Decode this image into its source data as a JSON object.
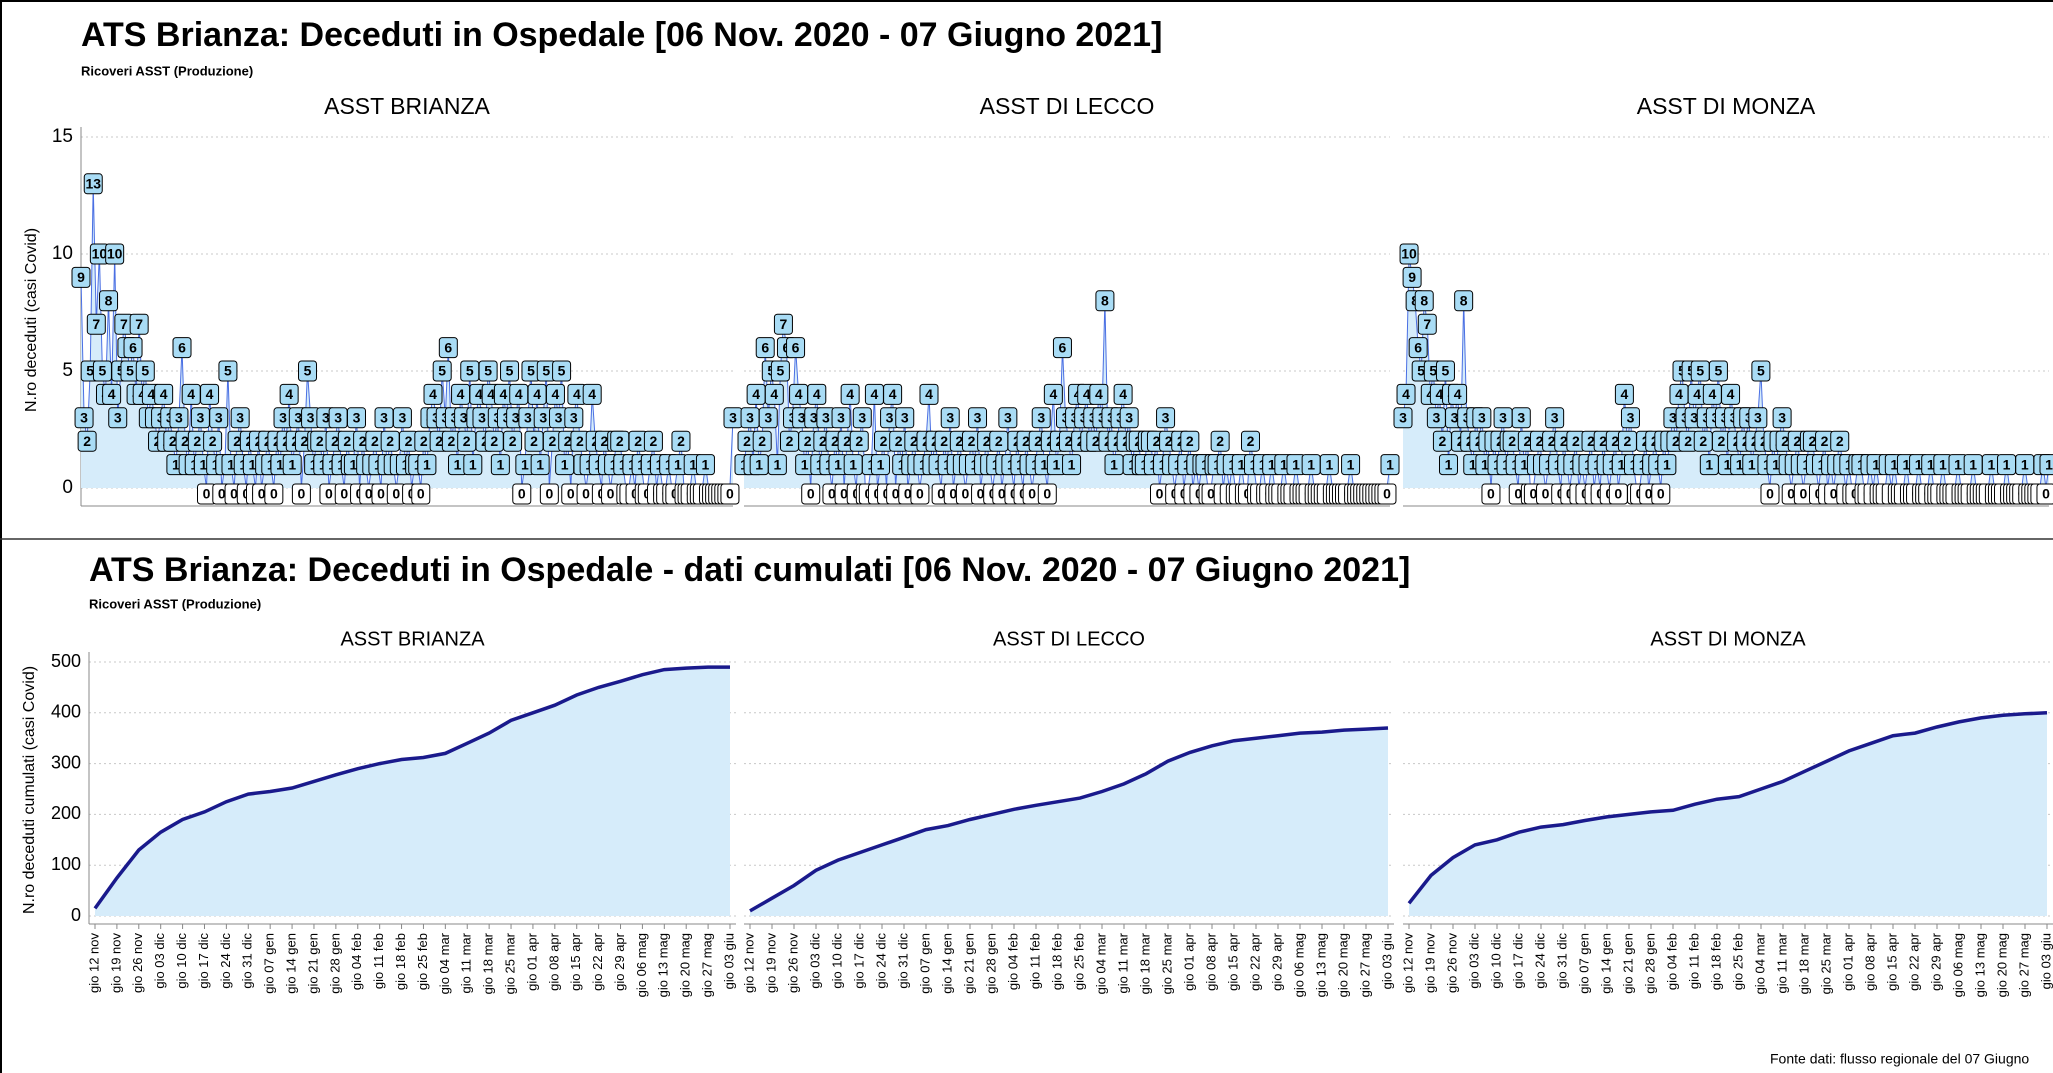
{
  "chart_data": [
    {
      "type": "line",
      "title": "ATS Brianza: Deceduti in Ospedale [06 Nov. 2020 - 07 Giugno 2021]",
      "subtitle": "Ricoveri ASST (Produzione)",
      "ylabel": "N.ro deceduti (casi Covid)",
      "ylim": [
        0,
        15
      ],
      "yticks": [
        0,
        5,
        10,
        15
      ],
      "grid": true,
      "series": [
        {
          "name": "ASST BRIANZA",
          "color": "#4a6fe3",
          "values": [
            9,
            3,
            2,
            5,
            13,
            7,
            10,
            5,
            4,
            8,
            4,
            10,
            3,
            5,
            7,
            6,
            5,
            6,
            4,
            7,
            4,
            5,
            3,
            4,
            3,
            2,
            3,
            4,
            2,
            3,
            2,
            1,
            3,
            6,
            2,
            1,
            4,
            1,
            2,
            3,
            1,
            0,
            4,
            2,
            1,
            3,
            0,
            1,
            5,
            1,
            0,
            2,
            3,
            1,
            0,
            2,
            1,
            0,
            2,
            0,
            1,
            2,
            1,
            0,
            2,
            1,
            3,
            2,
            4,
            1,
            2,
            3,
            0,
            2,
            5,
            3,
            1,
            2,
            2,
            1,
            3,
            0,
            1,
            2,
            3,
            1,
            0,
            2,
            1,
            1,
            3,
            0,
            2,
            1,
            0,
            1,
            2,
            1,
            0,
            3,
            1,
            2,
            1,
            0,
            1,
            3,
            1,
            2,
            0,
            1,
            1,
            0,
            2,
            1,
            3,
            4,
            3,
            2,
            5,
            3,
            6,
            2,
            3,
            1,
            4,
            3,
            2,
            5,
            1,
            3,
            4,
            3,
            2,
            5,
            4,
            2,
            3,
            1,
            4,
            3,
            5,
            2,
            3,
            4,
            0,
            1,
            3,
            5,
            2,
            4,
            1,
            3,
            5,
            0,
            2,
            4,
            3,
            5,
            1,
            2,
            0,
            3,
            4,
            2,
            1,
            0,
            1,
            4,
            2,
            1,
            0,
            2,
            1,
            0,
            1,
            2,
            2,
            1,
            0,
            0,
            1,
            0,
            2,
            1,
            0,
            0,
            1,
            2,
            0,
            1,
            0,
            0,
            1,
            0,
            0,
            1,
            2,
            0,
            0,
            0,
            1,
            0,
            0,
            0,
            1,
            0,
            0,
            0,
            0,
            0,
            0,
            0,
            0,
            3
          ]
        },
        {
          "name": "ASST DI LECCO",
          "color": "#4a6fe3",
          "values": [
            1,
            2,
            3,
            1,
            4,
            1,
            2,
            6,
            3,
            5,
            4,
            1,
            5,
            7,
            6,
            2,
            3,
            6,
            4,
            3,
            1,
            2,
            0,
            3,
            4,
            1,
            2,
            3,
            1,
            0,
            2,
            1,
            3,
            0,
            2,
            4,
            1,
            0,
            2,
            3,
            0,
            0,
            1,
            4,
            0,
            1,
            2,
            0,
            3,
            4,
            0,
            2,
            1,
            3,
            0,
            1,
            2,
            1,
            0,
            1,
            2,
            4,
            1,
            2,
            1,
            0,
            2,
            1,
            3,
            0,
            1,
            2,
            1,
            0,
            1,
            2,
            1,
            3,
            0,
            1,
            2,
            1,
            0,
            1,
            2,
            0,
            1,
            3,
            1,
            0,
            2,
            1,
            0,
            2,
            1,
            0,
            1,
            2,
            3,
            1,
            0,
            2,
            4,
            1,
            2,
            6,
            3,
            2,
            1,
            3,
            4,
            2,
            3,
            4,
            2,
            3,
            2,
            4,
            3,
            8,
            2,
            3,
            1,
            2,
            3,
            4,
            2,
            3,
            1,
            2,
            2,
            1,
            1,
            2,
            2,
            1,
            2,
            0,
            1,
            3,
            2,
            1,
            0,
            1,
            2,
            0,
            1,
            2,
            0,
            1,
            0,
            1,
            1,
            0,
            0,
            1,
            1,
            2,
            0,
            1,
            0,
            1,
            0,
            0,
            1,
            0,
            0,
            2,
            1,
            0,
            0,
            1,
            0,
            0,
            1,
            0,
            0,
            0,
            1,
            0,
            0,
            0,
            1,
            0,
            0,
            0,
            0,
            1,
            0,
            0,
            0,
            0,
            0,
            1,
            0,
            0,
            0,
            0,
            0,
            0,
            1,
            0,
            0,
            0,
            0,
            0,
            0,
            0,
            0,
            0,
            0,
            0,
            0,
            1
          ]
        },
        {
          "name": "ASST DI MONZA",
          "color": "#4a6fe3",
          "values": [
            3,
            4,
            10,
            9,
            8,
            6,
            5,
            8,
            7,
            4,
            5,
            3,
            4,
            2,
            5,
            1,
            4,
            3,
            4,
            2,
            8,
            3,
            2,
            1,
            3,
            2,
            3,
            1,
            2,
            0,
            2,
            1,
            2,
            3,
            1,
            2,
            2,
            1,
            0,
            3,
            1,
            2,
            0,
            0,
            1,
            2,
            1,
            0,
            1,
            2,
            3,
            1,
            0,
            2,
            1,
            0,
            1,
            2,
            0,
            1,
            0,
            1,
            2,
            0,
            1,
            0,
            2,
            1,
            0,
            1,
            2,
            0,
            1,
            4,
            2,
            3,
            1,
            0,
            0,
            1,
            2,
            0,
            1,
            2,
            1,
            0,
            2,
            1,
            2,
            3,
            2,
            4,
            5,
            3,
            2,
            5,
            3,
            4,
            5,
            2,
            3,
            1,
            4,
            3,
            5,
            2,
            3,
            1,
            4,
            3,
            2,
            1,
            3,
            2,
            3,
            1,
            2,
            3,
            5,
            2,
            1,
            0,
            2,
            1,
            2,
            3,
            2,
            1,
            0,
            1,
            2,
            1,
            0,
            1,
            2,
            2,
            1,
            0,
            1,
            2,
            0,
            1,
            0,
            1,
            2,
            1,
            0,
            1,
            0,
            0,
            1,
            1,
            0,
            0,
            1,
            0,
            1,
            0,
            0,
            0,
            1,
            0,
            1,
            0,
            0,
            0,
            1,
            0,
            0,
            0,
            1,
            0,
            0,
            0,
            1,
            0,
            0,
            0,
            1,
            0,
            0,
            0,
            0,
            1,
            0,
            0,
            0,
            0,
            1,
            0,
            0,
            0,
            0,
            0,
            1,
            0,
            0,
            0,
            0,
            1,
            0,
            0,
            0,
            0,
            0,
            1,
            0,
            0,
            0,
            0,
            0,
            1,
            0,
            1
          ]
        }
      ]
    },
    {
      "type": "area",
      "title": "ATS Brianza: Deceduti in Ospedale - dati cumulati [06 Nov. 2020 - 07 Giugno 2021]",
      "subtitle": "Ricoveri ASST (Produzione)",
      "ylabel": "N.ro deceduti cumulati (casi Covid)",
      "ylim": [
        0,
        500
      ],
      "yticks": [
        0,
        100,
        200,
        300,
        400,
        500
      ],
      "grid": true,
      "categories": [
        "gio 12 nov",
        "gio 19 nov",
        "gio 26 nov",
        "gio 03 dic",
        "gio 10 dic",
        "gio 17 dic",
        "gio 24 dic",
        "gio 31 dic",
        "gio 07 gen",
        "gio 14 gen",
        "gio 21 gen",
        "gio 28 gen",
        "gio 04 feb",
        "gio 11 feb",
        "gio 18 feb",
        "gio 25 feb",
        "gio 04 mar",
        "gio 11 mar",
        "gio 18 mar",
        "gio 25 mar",
        "gio 01 apr",
        "gio 08 apr",
        "gio 15 apr",
        "gio 22 apr",
        "gio 29 apr",
        "gio 06 mag",
        "gio 13 mag",
        "gio 20 mag",
        "gio 27 mag",
        "gio 03 giu"
      ],
      "series": [
        {
          "name": "ASST BRIANZA",
          "color": "#1a1a8c",
          "values": [
            15,
            75,
            130,
            165,
            190,
            205,
            225,
            240,
            245,
            252,
            265,
            278,
            290,
            300,
            308,
            312,
            320,
            340,
            360,
            385,
            400,
            415,
            435,
            450,
            462,
            475,
            485,
            488,
            490,
            490
          ]
        },
        {
          "name": "ASST DI LECCO",
          "color": "#1a1a8c",
          "values": [
            10,
            35,
            60,
            90,
            110,
            125,
            140,
            155,
            170,
            178,
            190,
            200,
            210,
            218,
            225,
            232,
            245,
            260,
            280,
            305,
            322,
            335,
            345,
            350,
            355,
            360,
            362,
            366,
            368,
            370
          ]
        },
        {
          "name": "ASST DI MONZA",
          "color": "#1a1a8c",
          "values": [
            25,
            80,
            115,
            140,
            150,
            165,
            175,
            180,
            188,
            195,
            200,
            205,
            208,
            220,
            230,
            235,
            250,
            265,
            285,
            305,
            325,
            340,
            355,
            360,
            372,
            382,
            390,
            395,
            398,
            400
          ]
        }
      ]
    },
    {
      "source": "Fonte dati: flusso regionale del 07 Giugno"
    }
  ]
}
